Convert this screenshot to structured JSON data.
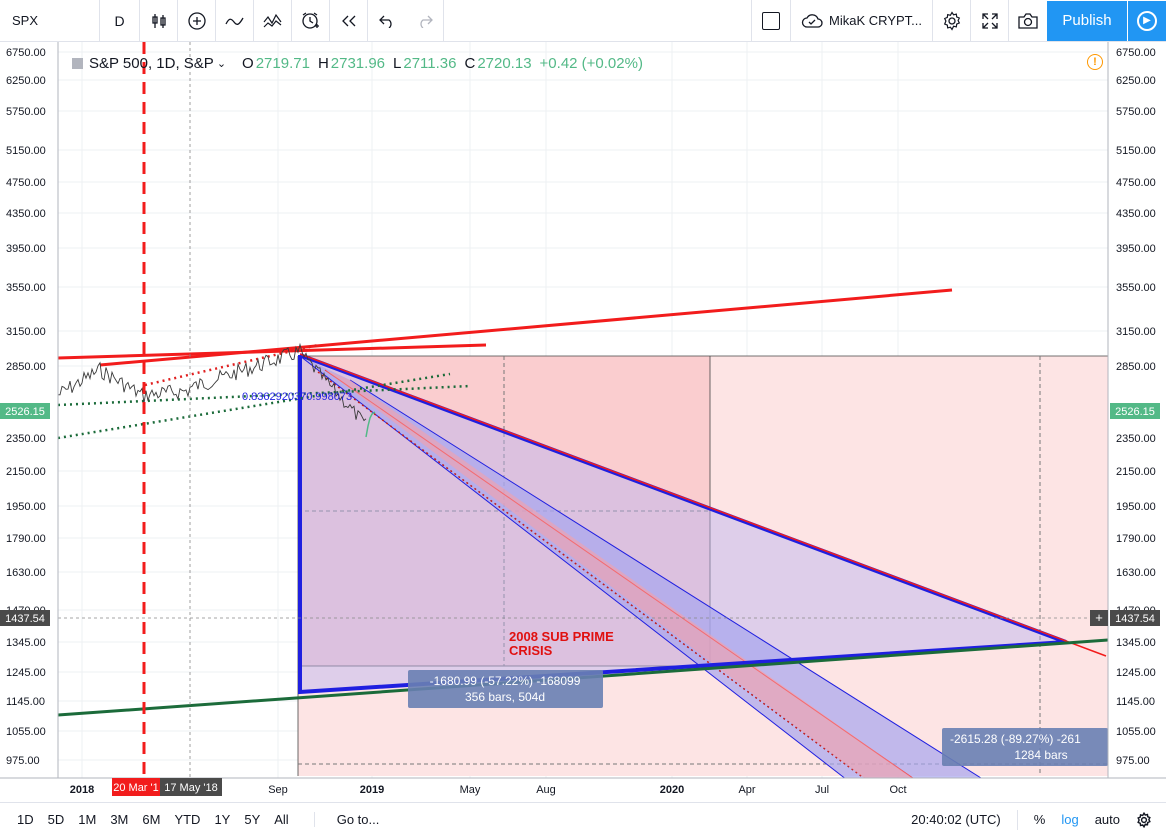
{
  "toolbar": {
    "symbol": "SPX",
    "interval": "D",
    "layout_name": "MikaK CRYPT...",
    "publish_label": "Publish",
    "icons": [
      "bar-style-icon",
      "add-indicator-icon",
      "compare-icon",
      "indicators-icon",
      "alert-icon",
      "replay-icon",
      "undo-icon",
      "redo-icon",
      "layout-icon",
      "cloud-icon",
      "settings-icon",
      "fullscreen-icon",
      "snapshot-icon",
      "play-icon"
    ]
  },
  "legend": {
    "title": "S&P 500, 1D, S&P",
    "o_label": "O",
    "o": "2719.71",
    "h_label": "H",
    "h": "2731.96",
    "l_label": "L",
    "l": "2711.36",
    "c_label": "C",
    "c": "2720.13",
    "change": "+0.42 (+0.02%)"
  },
  "price_axis": {
    "labels": [
      "6750.00",
      "6250.00",
      "5750.00",
      "5150.00",
      "4750.00",
      "4350.00",
      "3950.00",
      "3550.00",
      "3150.00",
      "2850.00",
      "2350.00",
      "2150.00",
      "1950.00",
      "1790.00",
      "1630.00",
      "1470.00",
      "1345.00",
      "1245.00",
      "1145.00",
      "1055.00",
      "975.00"
    ],
    "last_price": "2526.15",
    "crosshair_price": "1437.54"
  },
  "time_axis": {
    "labels": [
      "2018",
      "Sep",
      "2019",
      "May",
      "Aug",
      "2020",
      "Apr",
      "Jul",
      "Oct"
    ],
    "marker_1": "20 Mar '1",
    "marker_2": "17 May '18"
  },
  "annotations": {
    "fib_text": "0.8362920370.998073",
    "crisis_line1": "2008 SUB PRIME",
    "crisis_line2": "CRISIS",
    "measure1_line1": "-1680.99 (-57.22%) -168099",
    "measure1_line2": "356 bars, 504d",
    "measure2_line1": "-2615.28 (-89.27%) -261",
    "measure2_line2": "1284 bars"
  },
  "colors": {
    "red": "#f21c1c",
    "blue": "#1f1fe0",
    "green": "#1b6b3a",
    "up": "#53b987",
    "accent": "#2196f3"
  },
  "bottombar": {
    "timeframes": [
      "1D",
      "5D",
      "1M",
      "3M",
      "6M",
      "YTD",
      "1Y",
      "5Y",
      "All"
    ],
    "goto": "Go to...",
    "time": "20:40:02 (UTC)",
    "percent": "%",
    "log": "log",
    "auto": "auto"
  }
}
